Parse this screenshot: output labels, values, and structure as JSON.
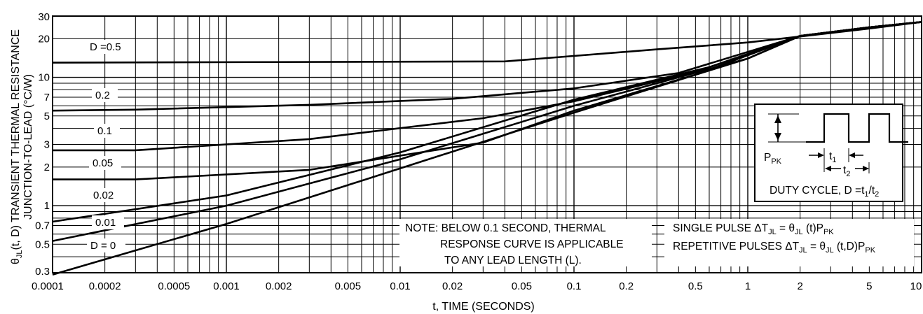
{
  "chart_data": {
    "type": "line",
    "x_scale": "log",
    "y_scale": "log",
    "grid": true,
    "xlim": [
      0.0001,
      10
    ],
    "ylim": [
      0.3,
      30
    ],
    "xlabel": "t, TIME (SECONDS)",
    "ylabel_line1": "θJL(t, D) TRANSIENT THERMAL RESISTANCE",
    "ylabel_line2": "JUNCTION-TO-LEAD (°C/W)",
    "x_ticks": [
      {
        "v": 0.0001,
        "label": "0.0001"
      },
      {
        "v": 0.0002,
        "label": "0.0002"
      },
      {
        "v": 0.0005,
        "label": "0.0005"
      },
      {
        "v": 0.001,
        "label": "0.001"
      },
      {
        "v": 0.002,
        "label": "0.002"
      },
      {
        "v": 0.005,
        "label": "0.005"
      },
      {
        "v": 0.01,
        "label": "0.01"
      },
      {
        "v": 0.02,
        "label": "0.02"
      },
      {
        "v": 0.05,
        "label": "0.05"
      },
      {
        "v": 0.1,
        "label": "0.1"
      },
      {
        "v": 0.2,
        "label": "0.2"
      },
      {
        "v": 0.5,
        "label": "0.5"
      },
      {
        "v": 1,
        "label": "1"
      },
      {
        "v": 2,
        "label": "2"
      },
      {
        "v": 5,
        "label": "5"
      },
      {
        "v": 10,
        "label": "10"
      }
    ],
    "y_ticks": [
      {
        "v": 0.3,
        "label": "0.3"
      },
      {
        "v": 0.5,
        "label": "0.5"
      },
      {
        "v": 0.7,
        "label": "0.7"
      },
      {
        "v": 1,
        "label": "1"
      },
      {
        "v": 2,
        "label": "2"
      },
      {
        "v": 3,
        "label": "3"
      },
      {
        "v": 5,
        "label": "5"
      },
      {
        "v": 7,
        "label": "7"
      },
      {
        "v": 10,
        "label": "10"
      },
      {
        "v": 20,
        "label": "20"
      },
      {
        "v": 30,
        "label": "30"
      }
    ],
    "series": [
      {
        "name": "D =0.5",
        "points": [
          [
            0.0001,
            13
          ],
          [
            0.04,
            13.3
          ],
          [
            0.3,
            16.5
          ],
          [
            1,
            18.7
          ],
          [
            2,
            20.8
          ],
          [
            5,
            24
          ],
          [
            10,
            27
          ]
        ]
      },
      {
        "name": "0.2",
        "points": [
          [
            0.0001,
            5.5
          ],
          [
            0.0003,
            5.6
          ],
          [
            0.003,
            6.1
          ],
          [
            0.02,
            6.8
          ],
          [
            0.1,
            8.2
          ],
          [
            0.4,
            10.8
          ],
          [
            2,
            21
          ],
          [
            5,
            24.5
          ],
          [
            10,
            27
          ]
        ]
      },
      {
        "name": "0.1",
        "points": [
          [
            0.0001,
            2.7
          ],
          [
            0.0003,
            2.7
          ],
          [
            0.003,
            3.3
          ],
          [
            0.03,
            4.8
          ],
          [
            0.1,
            6.5
          ],
          [
            0.5,
            11
          ],
          [
            2,
            21
          ],
          [
            5,
            24.5
          ],
          [
            10,
            27
          ]
        ]
      },
      {
        "name": "0.05",
        "points": [
          [
            0.0001,
            1.6
          ],
          [
            0.0003,
            1.6
          ],
          [
            0.003,
            1.9
          ],
          [
            0.03,
            3.1
          ],
          [
            0.1,
            5.5
          ],
          [
            0.5,
            10.5
          ],
          [
            2,
            21
          ],
          [
            5,
            24.5
          ],
          [
            10,
            27
          ]
        ]
      },
      {
        "name": "0.02",
        "points": [
          [
            0.0001,
            0.75
          ],
          [
            0.001,
            1.2
          ],
          [
            0.01,
            2.6
          ],
          [
            0.1,
            6.7
          ],
          [
            0.6,
            12
          ],
          [
            2,
            21
          ],
          [
            5,
            24.5
          ],
          [
            10,
            27
          ]
        ]
      },
      {
        "name": "0.01",
        "points": [
          [
            0.0001,
            0.53
          ],
          [
            0.001,
            1.0
          ],
          [
            0.01,
            2.3
          ],
          [
            0.1,
            6.0
          ],
          [
            1,
            14
          ],
          [
            2,
            21
          ],
          [
            5,
            24.5
          ],
          [
            10,
            27
          ]
        ]
      },
      {
        "name": "D = 0",
        "points": [
          [
            0.0001,
            0.29
          ],
          [
            0.001,
            0.72
          ],
          [
            0.01,
            1.95
          ],
          [
            0.1,
            5.3
          ],
          [
            1,
            14
          ],
          [
            2,
            21
          ],
          [
            5,
            24.5
          ],
          [
            10,
            27
          ]
        ]
      }
    ],
    "annotations": {
      "note_line1": "NOTE: BELOW 0.1 SECOND, THERMAL",
      "note_line2": "RESPONSE CURVE IS APPLICABLE",
      "note_line3": "TO ANY LEAD LENGTH (L).",
      "single_pulse": "SINGLE PULSE ΔTJL = θJL (t)PPK",
      "repetitive_pulses": "REPETITIVE PULSES ΔTJL = θJL (t,D)PPK",
      "inset_ppk": "PPK",
      "inset_t1": "t1",
      "inset_t2": "t2",
      "inset_duty_cycle": "DUTY CYCLE, D =t1/t2"
    }
  }
}
